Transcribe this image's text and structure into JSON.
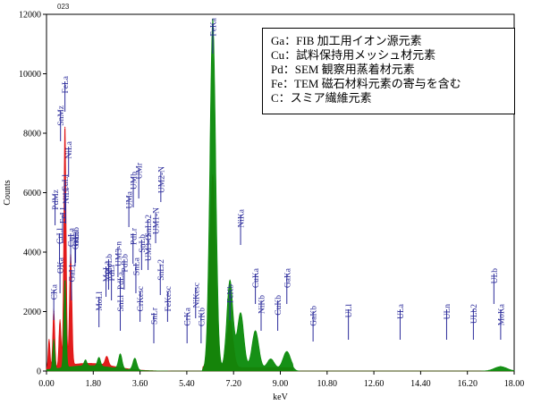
{
  "chart_data": {
    "type": "line",
    "spectrum_id": "023",
    "xlabel": "keV",
    "ylabel": "Counts",
    "xlim": [
      0.0,
      18.0
    ],
    "ylim": [
      0,
      12000
    ],
    "x_ticks": [
      "0.00",
      "1.80",
      "3.60",
      "5.40",
      "7.20",
      "9.00",
      "10.80",
      "12.60",
      "14.40",
      "16.20",
      "18.00"
    ],
    "y_ticks": [
      "0",
      "2000",
      "4000",
      "6000",
      "8000",
      "10000",
      "12000"
    ],
    "series": [
      {
        "color": "#e01010",
        "peaks": [
          {
            "x": 0.1,
            "y": 1000
          },
          {
            "x": 0.28,
            "y": 2000
          },
          {
            "x": 0.52,
            "y": 1600
          },
          {
            "x": 0.71,
            "y": 8200
          },
          {
            "x": 0.93,
            "y": 3800
          },
          {
            "x": 2.32,
            "y": 300
          },
          {
            "x": 6.4,
            "y": 6500
          },
          {
            "x": 7.06,
            "y": 1600
          }
        ]
      },
      {
        "color": "#0a8a0a",
        "peaks": [
          {
            "x": 0.28,
            "y": 1000
          },
          {
            "x": 0.71,
            "y": 3000
          },
          {
            "x": 1.5,
            "y": 200
          },
          {
            "x": 2.02,
            "y": 300
          },
          {
            "x": 2.84,
            "y": 500
          },
          {
            "x": 3.4,
            "y": 400
          },
          {
            "x": 6.4,
            "y": 11800
          },
          {
            "x": 7.06,
            "y": 3000
          },
          {
            "x": 7.47,
            "y": 1900
          },
          {
            "x": 8.04,
            "y": 1300
          },
          {
            "x": 8.63,
            "y": 350
          },
          {
            "x": 9.25,
            "y": 600
          },
          {
            "x": 17.48,
            "y": 150
          }
        ]
      }
    ],
    "peak_labels": [
      {
        "text": "CKa",
        "x": 0.28
      },
      {
        "text": "PdMz",
        "x": 0.33
      },
      {
        "text": "OKa",
        "x": 0.52
      },
      {
        "text": "CrLl",
        "x": 0.5
      },
      {
        "text": "FeLl",
        "x": 0.62
      },
      {
        "text": "CuLl",
        "x": 0.7
      },
      {
        "text": "FeLa",
        "x": 0.71
      },
      {
        "text": "SnMz",
        "x": 0.54
      },
      {
        "text": "CuLa",
        "x": 0.93
      },
      {
        "text": "GaLl",
        "x": 0.96
      },
      {
        "text": "NiLl",
        "x": 0.74
      },
      {
        "text": "NiLa",
        "x": 0.85
      },
      {
        "text": "GaLa",
        "x": 1.1
      },
      {
        "text": "GaLb",
        "x": 1.12
      },
      {
        "text": "MoLl",
        "x": 2.02
      },
      {
        "text": "MoLa",
        "x": 2.29
      },
      {
        "text": "MoLb",
        "x": 2.39
      },
      {
        "text": "PdLl",
        "x": 2.5
      },
      {
        "text": "SnLl",
        "x": 2.84
      },
      {
        "text": "PdLa",
        "x": 2.84
      },
      {
        "text": "PdLb",
        "x": 2.99
      },
      {
        "text": "UM3-n",
        "x": 2.75
      },
      {
        "text": "UMa",
        "x": 3.17
      },
      {
        "text": "UMb",
        "x": 3.34
      },
      {
        "text": "UMr",
        "x": 3.55
      },
      {
        "text": "PdLr",
        "x": 3.33
      },
      {
        "text": "SnLa",
        "x": 3.44
      },
      {
        "text": "CrKesc",
        "x": 3.6
      },
      {
        "text": "SnLr",
        "x": 4.13
      },
      {
        "text": "SnLb",
        "x": 3.66
      },
      {
        "text": "SnLb2",
        "x": 3.9
      },
      {
        "text": "UM3-O",
        "x": 3.91
      },
      {
        "text": "UM1-N",
        "x": 4.2
      },
      {
        "text": "UM2-N",
        "x": 4.4
      },
      {
        "text": "SnLr2",
        "x": 4.38
      },
      {
        "text": "FeKesc",
        "x": 4.66
      },
      {
        "text": "CrKa",
        "x": 5.41
      },
      {
        "text": "CrKb",
        "x": 5.95
      },
      {
        "text": "NiKesc",
        "x": 5.74
      },
      {
        "text": "FeKa",
        "x": 6.4
      },
      {
        "text": "FeKb",
        "x": 7.06
      },
      {
        "text": "NiKa",
        "x": 7.47
      },
      {
        "text": "NiKb",
        "x": 8.26
      },
      {
        "text": "CuKa",
        "x": 8.04
      },
      {
        "text": "CuKb",
        "x": 8.9
      },
      {
        "text": "GaKa",
        "x": 9.25
      },
      {
        "text": "GaKb",
        "x": 10.26
      },
      {
        "text": "ULl",
        "x": 11.62
      },
      {
        "text": "ULa",
        "x": 13.61
      },
      {
        "text": "ULn",
        "x": 15.4
      },
      {
        "text": "ULb2",
        "x": 16.43
      },
      {
        "text": "MoKa",
        "x": 17.48
      },
      {
        "text": "ULb",
        "x": 17.22
      }
    ]
  },
  "legend_box": {
    "lines": [
      "Ga：FIB 加工用イオン源元素",
      "Cu：試料保持用メッシュ材元素",
      "Pd：SEM 観察用蒸着材元素",
      "Fe：TEM 磁石材料元素の寄与を含む",
      "C：スミア繊維元素"
    ]
  }
}
